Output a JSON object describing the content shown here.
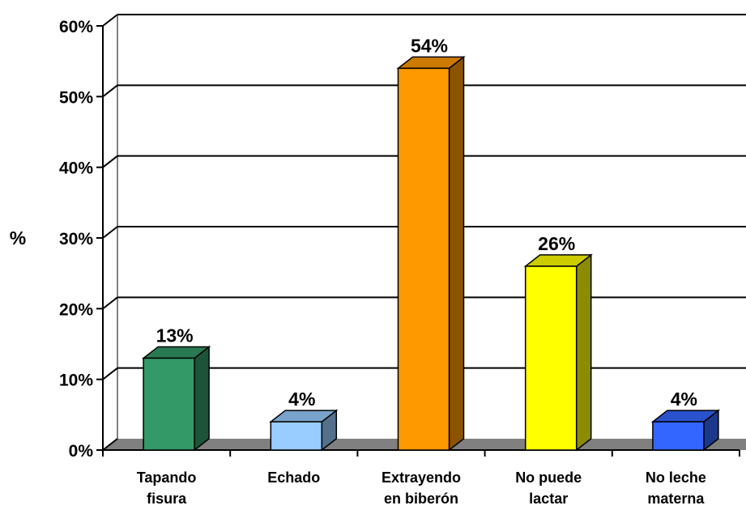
{
  "chart_data": {
    "type": "bar",
    "categories": [
      [
        "Tapando",
        "fisura"
      ],
      [
        "Echado"
      ],
      [
        "Extrayendo",
        "en biberón"
      ],
      [
        "No puede",
        "lactar"
      ],
      [
        "No leche",
        "materna"
      ]
    ],
    "values": [
      13,
      4,
      54,
      26,
      4
    ],
    "data_labels": [
      "13%",
      "4%",
      "54%",
      "26%",
      "4%"
    ],
    "colors": [
      "#339966",
      "#99ccff",
      "#ff9900",
      "#ffff00",
      "#3366ff"
    ],
    "ylabel": "%",
    "ylim": [
      0,
      60
    ],
    "yticks": [
      0,
      10,
      20,
      30,
      40,
      50,
      60
    ],
    "ytick_labels": [
      "0%",
      "10%",
      "20%",
      "30%",
      "40%",
      "50%",
      "60%"
    ],
    "grid": true,
    "style": "3d"
  }
}
